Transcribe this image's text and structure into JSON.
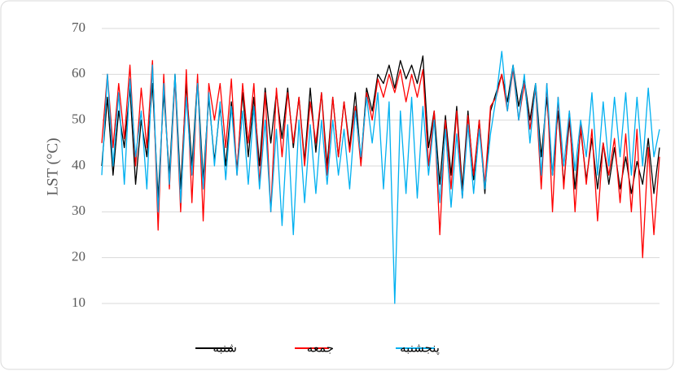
{
  "chart_data": {
    "type": "line",
    "y_label": "LST (°C)",
    "ylim": [
      10,
      70
    ],
    "yticks": [
      10,
      20,
      30,
      40,
      50,
      60,
      70
    ],
    "grid": true,
    "legend": "bottom",
    "series": [
      {
        "name": "شنبه",
        "color": "#000000",
        "values": [
          40,
          55,
          38,
          52,
          44,
          57,
          36,
          50,
          42,
          58,
          33,
          56,
          38,
          60,
          35,
          58,
          40,
          59,
          37,
          55,
          41,
          53,
          40,
          54,
          39,
          56,
          42,
          55,
          40,
          57,
          45,
          56,
          46,
          57,
          44,
          55,
          41,
          57,
          43,
          56,
          40,
          55,
          42,
          54,
          44,
          56,
          41,
          57,
          52,
          60,
          58,
          62,
          57,
          63,
          59,
          62,
          58,
          64,
          44,
          52,
          36,
          51,
          38,
          53,
          35,
          52,
          37,
          50,
          34,
          52,
          56,
          60,
          54,
          62,
          53,
          59,
          50,
          58,
          42,
          55,
          38,
          52,
          36,
          50,
          35,
          48,
          37,
          46,
          35,
          45,
          36,
          44,
          35,
          42,
          34,
          41,
          36,
          46,
          34,
          44
        ]
      },
      {
        "name": "جمعه",
        "color": "#ff0000",
        "values": [
          45,
          60,
          44,
          58,
          46,
          62,
          40,
          57,
          44,
          63,
          26,
          60,
          35,
          59,
          30,
          61,
          32,
          60,
          28,
          58,
          50,
          58,
          44,
          59,
          38,
          58,
          45,
          58,
          36,
          56,
          30,
          57,
          42,
          56,
          45,
          55,
          40,
          54,
          45,
          56,
          38,
          55,
          42,
          54,
          43,
          53,
          40,
          56,
          50,
          59,
          55,
          60,
          56,
          61,
          54,
          60,
          55,
          61,
          40,
          52,
          25,
          50,
          35,
          52,
          33,
          51,
          38,
          50,
          36,
          53,
          55,
          60,
          52,
          61,
          50,
          58,
          48,
          57,
          35,
          58,
          30,
          55,
          35,
          52,
          30,
          49,
          36,
          48,
          28,
          45,
          38,
          46,
          32,
          47,
          30,
          48,
          20,
          44,
          25,
          42
        ]
      },
      {
        "name": "پنجشنبه",
        "color": "#00b0f0",
        "values": [
          38,
          60,
          40,
          56,
          36,
          59,
          42,
          52,
          35,
          62,
          30,
          58,
          36,
          60,
          32,
          55,
          38,
          58,
          35,
          56,
          40,
          54,
          37,
          53,
          38,
          52,
          36,
          53,
          35,
          50,
          30,
          48,
          27,
          49,
          25,
          50,
          32,
          49,
          34,
          50,
          36,
          50,
          38,
          48,
          35,
          52,
          42,
          55,
          45,
          56,
          35,
          54,
          10,
          52,
          34,
          55,
          33,
          53,
          38,
          50,
          32,
          48,
          31,
          47,
          33,
          49,
          34,
          48,
          35,
          47,
          55,
          65,
          52,
          62,
          50,
          60,
          45,
          58,
          38,
          58,
          38,
          55,
          40,
          52,
          39,
          50,
          42,
          56,
          38,
          54,
          40,
          55,
          42,
          56,
          38,
          55,
          40,
          57,
          42,
          48
        ]
      }
    ]
  }
}
